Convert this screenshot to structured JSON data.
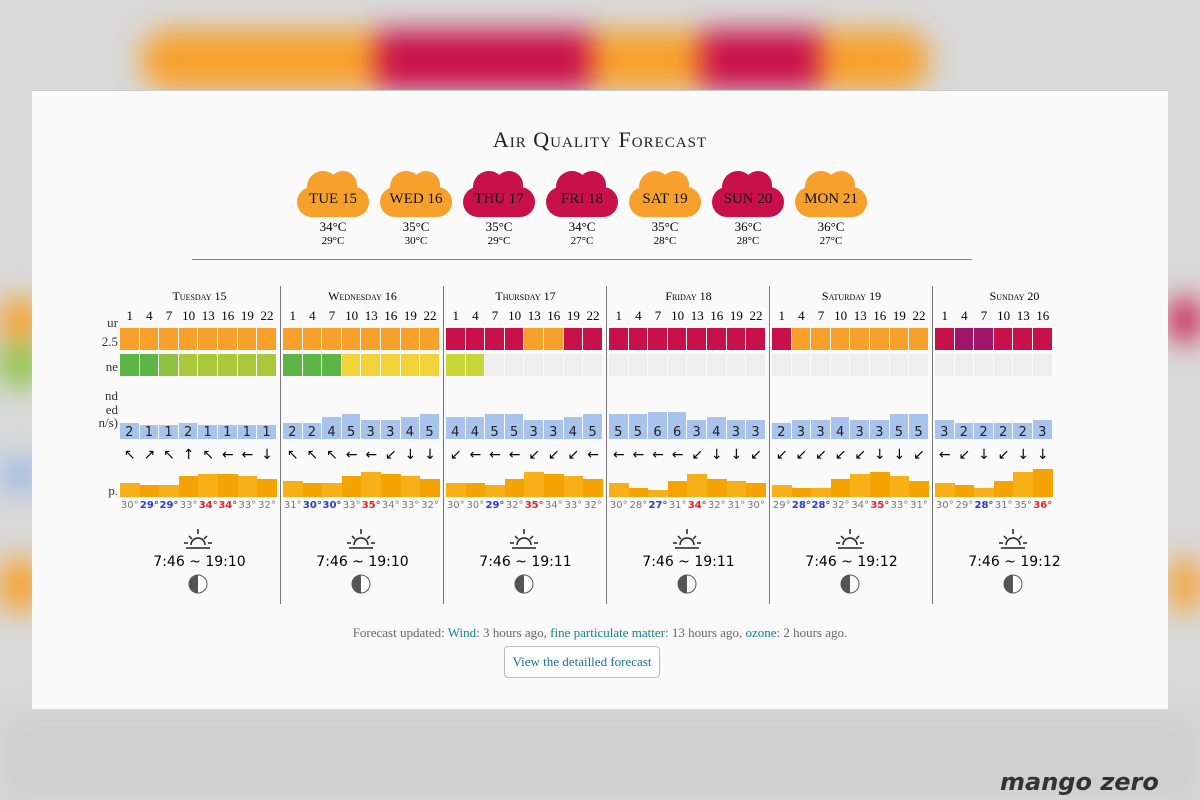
{
  "title": "Air Quality Forecast",
  "days": [
    {
      "label": "TUE 15",
      "color": "#f7a12c",
      "high": "34°C",
      "low": "29°C"
    },
    {
      "label": "WED 16",
      "color": "#f7a12c",
      "high": "35°C",
      "low": "30°C"
    },
    {
      "label": "THU 17",
      "color": "#c8104a",
      "high": "35°C",
      "low": "29°C"
    },
    {
      "label": "FRI 18",
      "color": "#c8104a",
      "high": "34°C",
      "low": "27°C"
    },
    {
      "label": "SAT 19",
      "color": "#f7a12c",
      "high": "35°C",
      "low": "28°C"
    },
    {
      "label": "SUN 20",
      "color": "#c8104a",
      "high": "36°C",
      "low": "28°C"
    },
    {
      "label": "MON 21",
      "color": "#f7a12c",
      "high": "36°C",
      "low": "27°C"
    }
  ],
  "row_labels": [
    "ur",
    "2.5",
    "ne",
    "nd",
    "ed",
    "n/s)",
    "p."
  ],
  "hours": [
    1,
    4,
    7,
    10,
    13,
    16,
    19,
    22
  ],
  "wind_ylim": [
    -4,
    7
  ],
  "temp_ylim": [
    24,
    37
  ],
  "columns": [
    {
      "name": "Tuesday 15",
      "pm25": [
        "#f7a12c",
        "#f7a12c",
        "#f7a12c",
        "#f7a12c",
        "#f7a12c",
        "#f7a12c",
        "#f7a12c",
        "#f7a12c"
      ],
      "ozone": [
        "#5cb646",
        "#5cb646",
        "#8cc23e",
        "#a9c83a",
        "#a9c83a",
        "#a9c83a",
        "#a9c83a",
        "#a9c83a"
      ],
      "wind": [
        2,
        1,
        1,
        2,
        1,
        1,
        1,
        1
      ],
      "arrows": [
        "↖",
        "↗",
        "↖",
        "↑",
        "↖",
        "←",
        "←",
        "↓"
      ],
      "temps": [
        30,
        29,
        29,
        33,
        34,
        34,
        33,
        32
      ],
      "temp_labels": [
        "30°",
        "29°",
        "29°",
        "33°",
        "34°",
        "34°",
        "33°",
        "32°"
      ],
      "sun": "7:46 ~ 19:10"
    },
    {
      "name": "Wednesday 16",
      "pm25": [
        "#f7a12c",
        "#f7a12c",
        "#f7a12c",
        "#f7a12c",
        "#f7a12c",
        "#f7a12c",
        "#f7a12c",
        "#f7a12c"
      ],
      "ozone": [
        "#5cb646",
        "#5cb646",
        "#5cb646",
        "#f2d43a",
        "#f2d43a",
        "#f2d43a",
        "#f2d43a",
        "#f2d43a"
      ],
      "wind": [
        2,
        2,
        4,
        5,
        3,
        3,
        4,
        5
      ],
      "arrows": [
        "↖",
        "↖",
        "↖",
        "←",
        "←",
        "↙",
        "↓",
        "↓"
      ],
      "temps": [
        31,
        30,
        30,
        33,
        35,
        34,
        33,
        32
      ],
      "temp_labels": [
        "31°",
        "30°",
        "30°",
        "33°",
        "35°",
        "34°",
        "33°",
        "32°"
      ],
      "sun": "7:46 ~ 19:10"
    },
    {
      "name": "Thursday 17",
      "pm25": [
        "#c8104a",
        "#c8104a",
        "#c8104a",
        "#c8104a",
        "#f7a12c",
        "#f7a12c",
        "#c8104a",
        "#c8104a"
      ],
      "ozone": [
        "#c9d63a",
        "#c9d63a",
        null,
        null,
        null,
        null,
        null,
        null
      ],
      "wind": [
        4,
        4,
        5,
        5,
        3,
        3,
        4,
        5
      ],
      "arrows": [
        "↙",
        "←",
        "←",
        "←",
        "↙",
        "↙",
        "↙",
        "←"
      ],
      "temps": [
        30,
        30,
        29,
        32,
        35,
        34,
        33,
        32
      ],
      "temp_labels": [
        "30°",
        "30°",
        "29°",
        "32°",
        "35°",
        "34°",
        "33°",
        "32°"
      ],
      "sun": "7:46 ~ 19:11"
    },
    {
      "name": "Friday 18",
      "pm25": [
        "#c8104a",
        "#c8104a",
        "#c8104a",
        "#c8104a",
        "#c8104a",
        "#c8104a",
        "#c8104a",
        "#c8104a"
      ],
      "ozone": [
        null,
        null,
        null,
        null,
        null,
        null,
        null,
        null
      ],
      "wind": [
        5,
        5,
        6,
        6,
        3,
        4,
        3,
        3
      ],
      "arrows": [
        "←",
        "←",
        "←",
        "←",
        "↙",
        "↓",
        "↓",
        "↙"
      ],
      "temps": [
        30,
        28,
        27,
        31,
        34,
        32,
        31,
        30
      ],
      "temp_labels": [
        "30°",
        "28°",
        "27°",
        "31°",
        "34°",
        "32°",
        "31°",
        "30°"
      ],
      "sun": "7:46 ~ 19:11"
    },
    {
      "name": "Saturday 19",
      "pm25": [
        "#c8104a",
        "#f7a12c",
        "#f7a12c",
        "#f7a12c",
        "#f7a12c",
        "#f7a12c",
        "#f7a12c",
        "#f7a12c"
      ],
      "ozone": [
        null,
        null,
        null,
        null,
        null,
        null,
        null,
        null
      ],
      "wind": [
        2,
        3,
        3,
        4,
        3,
        3,
        5,
        5
      ],
      "arrows": [
        "↙",
        "↙",
        "↙",
        "↙",
        "↙",
        "↓",
        "↓",
        "↙"
      ],
      "temps": [
        29,
        28,
        28,
        32,
        34,
        35,
        33,
        31
      ],
      "temp_labels": [
        "29°",
        "28°",
        "28°",
        "32°",
        "34°",
        "35°",
        "33°",
        "31°"
      ],
      "sun": "7:46 ~ 19:12"
    },
    {
      "name": "Sunday 20",
      "pm25": [
        "#c8104a",
        "#a0146a",
        "#a0146a",
        "#c8104a",
        "#c8104a",
        "#c8104a"
      ],
      "ozone": [
        null,
        null,
        null,
        null,
        null,
        null
      ],
      "wind": [
        3,
        2,
        2,
        2,
        2,
        3
      ],
      "arrows": [
        "←",
        "↙",
        "↓",
        "↙",
        "↓",
        "↓"
      ],
      "temps": [
        30,
        29,
        28,
        31,
        35,
        36
      ],
      "temp_labels": [
        "30°",
        "29°",
        "28°",
        "31°",
        "35°",
        "36°"
      ],
      "sun": "7:46 ~ 19:12"
    }
  ],
  "footer": {
    "prefix": "Forecast updated: ",
    "wind_link": "Wind",
    "wind_text": ": 3 hours ago, ",
    "pm_link": "fine particulate matter",
    "pm_text": ": 13 hours ago, ",
    "ozone_link": "ozone",
    "ozone_text": ": 2 hours ago."
  },
  "button": "View the detailled forecast",
  "watermark": "mango zero"
}
